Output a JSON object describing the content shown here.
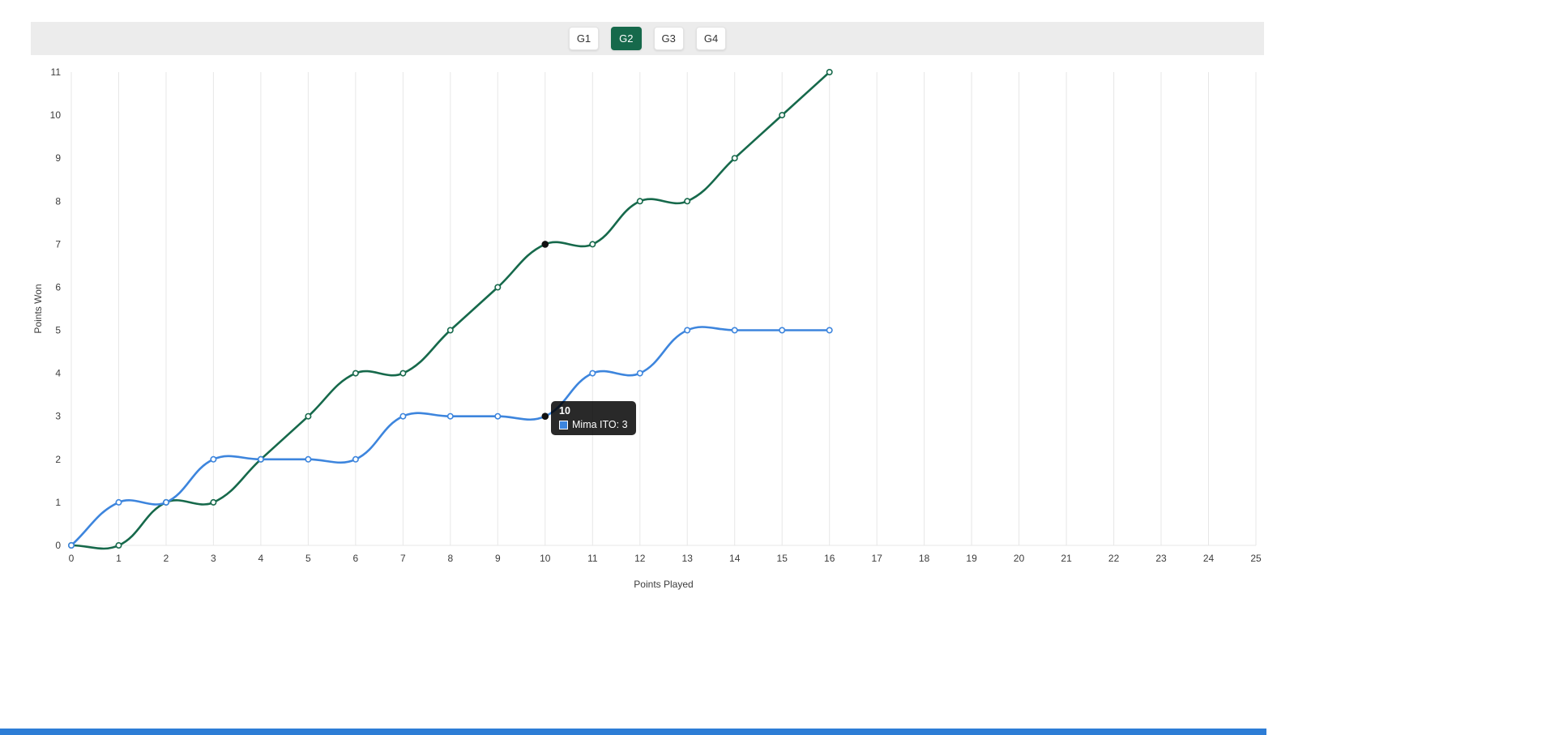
{
  "toolbar": {
    "games": [
      {
        "label": "G1",
        "active": false
      },
      {
        "label": "G2",
        "active": true
      },
      {
        "label": "G3",
        "active": false
      },
      {
        "label": "G4",
        "active": false
      }
    ]
  },
  "chart_data": {
    "type": "line",
    "title": "",
    "xlabel": "Points Played",
    "ylabel": "Points Won",
    "xlim": [
      0,
      25
    ],
    "ylim": [
      0,
      11
    ],
    "x_ticks": [
      0,
      1,
      2,
      3,
      4,
      5,
      6,
      7,
      8,
      9,
      10,
      11,
      12,
      13,
      14,
      15,
      16,
      17,
      18,
      19,
      20,
      21,
      22,
      23,
      24,
      25
    ],
    "y_ticks": [
      0,
      1,
      2,
      3,
      4,
      5,
      6,
      7,
      8,
      9,
      10,
      11
    ],
    "grid": "vertical-only",
    "legend": "none",
    "x": [
      0,
      1,
      2,
      3,
      4,
      5,
      6,
      7,
      8,
      9,
      10,
      11,
      12,
      13,
      14,
      15,
      16
    ],
    "series": [
      {
        "id": "green-player",
        "name": "",
        "color": "#16694b",
        "values": [
          0,
          0,
          1,
          1,
          2,
          3,
          4,
          4,
          5,
          6,
          7,
          7,
          8,
          8,
          9,
          10,
          11
        ]
      },
      {
        "id": "mima-ito",
        "name": "Mima ITO",
        "color": "#3d85dd",
        "values": [
          0,
          1,
          1,
          2,
          2,
          2,
          2,
          3,
          3,
          3,
          3,
          4,
          4,
          5,
          5,
          5,
          5
        ]
      }
    ],
    "highlight": {
      "x": 10,
      "color": "#111111"
    }
  },
  "tooltip": {
    "title": "10",
    "body": "Mima ITO: 3",
    "swatch_color": "#3d85dd"
  },
  "colors": {
    "accent_green": "#16694b",
    "line_blue": "#3d85dd",
    "toolbar_bg": "#ececec",
    "bottom_bar": "#2d7dd6"
  }
}
